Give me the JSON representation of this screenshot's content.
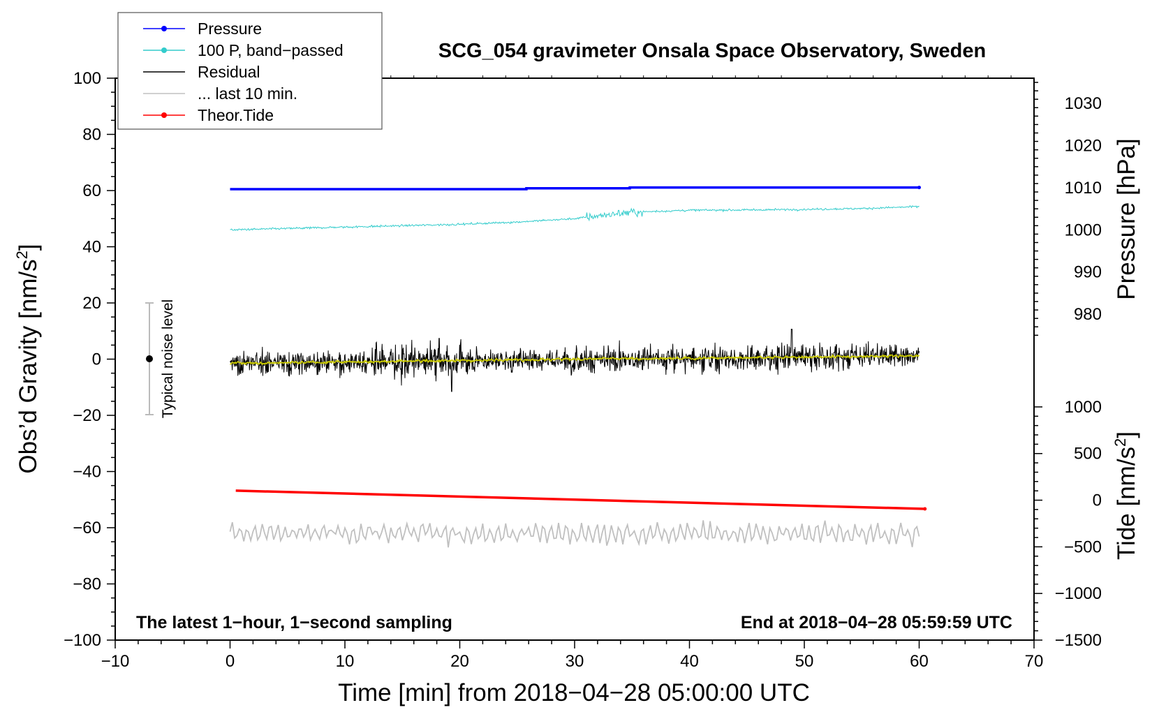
{
  "chart_data": {
    "type": "line",
    "title": "SCG_054 gravimeter Onsala Space Observatory, Sweden",
    "xlabel": "Time [min] from 2018−04−28 05:00:00 UTC",
    "ylabel_left_main": "Obs’d Gravity [nm/s",
    "ylabel_left_sup": "2",
    "ylabel_left_close": "]",
    "ylabel_right_pressure": "Pressure [hPa]",
    "ylabel_right_tide_main": "Tide [nm/s",
    "ylabel_right_tide_sup": "2",
    "ylabel_right_tide_close": "]",
    "xlim": [
      -10,
      70
    ],
    "ylim": [
      -100,
      100
    ],
    "pressure_axis": {
      "range": [
        1000,
        1010
      ],
      "gravity_at_range": [
        46,
        61
      ]
    },
    "tide_axis": {
      "range": [
        -1500,
        1000
      ],
      "gravity_at_range": [
        -100,
        -17
      ]
    },
    "x_ticks": [
      "−10",
      "0",
      "10",
      "20",
      "30",
      "40",
      "50",
      "60",
      "70"
    ],
    "x_tick_values": [
      -10,
      0,
      10,
      20,
      30,
      40,
      50,
      60,
      70
    ],
    "y_ticks": [
      "100",
      "80",
      "60",
      "40",
      "20",
      "0",
      "−20",
      "−40",
      "−60",
      "−80",
      "−100"
    ],
    "y_tick_values": [
      100,
      80,
      60,
      40,
      20,
      0,
      -20,
      -40,
      -60,
      -80,
      -100
    ],
    "pressure_ticks": [
      "1030",
      "1020",
      "1010",
      "1000",
      "990",
      "980"
    ],
    "pressure_tick_values": [
      1030,
      1020,
      1010,
      1000,
      990,
      980
    ],
    "tide_ticks": [
      "1000",
      "500",
      "0",
      "−500",
      "−1000",
      "−1500"
    ],
    "tide_tick_values": [
      1000,
      500,
      0,
      -500,
      -1000,
      -1500
    ],
    "legend": [
      {
        "label": "Pressure",
        "color": "#0000ff",
        "marker": true
      },
      {
        "label": "100 P, band−passed",
        "color": "#33cccc",
        "marker": true
      },
      {
        "label": "Residual",
        "color": "#000000",
        "marker": false
      },
      {
        "label": "... last 10 min.",
        "color": "#c0c0c0",
        "marker": false
      },
      {
        "label": "Theor.Tide",
        "color": "#ff0000",
        "marker": true
      }
    ],
    "legend_position": "top-left",
    "series": [
      {
        "name": "Pressure",
        "color": "#0000ff",
        "x": [
          0,
          25.8,
          25.8,
          34.8,
          34.8,
          60
        ],
        "y": [
          60.5,
          60.5,
          60.8,
          60.8,
          61.1,
          61.1
        ]
      },
      {
        "name": "100 P, band−passed",
        "color": "#33cccc",
        "x": [
          0,
          5,
          10,
          15,
          20,
          25,
          30,
          33,
          35,
          40,
          45,
          50,
          55,
          60
        ],
        "y": [
          46,
          46.5,
          47,
          47.5,
          48,
          48.8,
          50,
          51.5,
          52.3,
          53,
          53.1,
          53.3,
          53.6,
          54.3
        ]
      },
      {
        "name": "Residual",
        "color": "#000000",
        "x": [
          0,
          10,
          20,
          30,
          40,
          50,
          60
        ],
        "y": [
          -1.5,
          -1,
          -0.5,
          0,
          0.3,
          0.7,
          1.3
        ]
      },
      {
        "name": "... last 10 min.",
        "color": "#c0c0c0",
        "x": [
          0,
          60
        ],
        "y": [
          -62,
          -62
        ]
      },
      {
        "name": "Theor.Tide",
        "color": "#ff0000",
        "x": [
          0.5,
          60.5
        ],
        "y": [
          -46.8,
          -53.3
        ]
      }
    ],
    "noise_bar": {
      "x": -7,
      "y_range": [
        -20,
        20
      ],
      "label": "Typical noise level"
    },
    "footer_left": "The latest 1−hour, 1−second sampling",
    "footer_right": "End at 2018−04−28 05:59:59 UTC"
  }
}
